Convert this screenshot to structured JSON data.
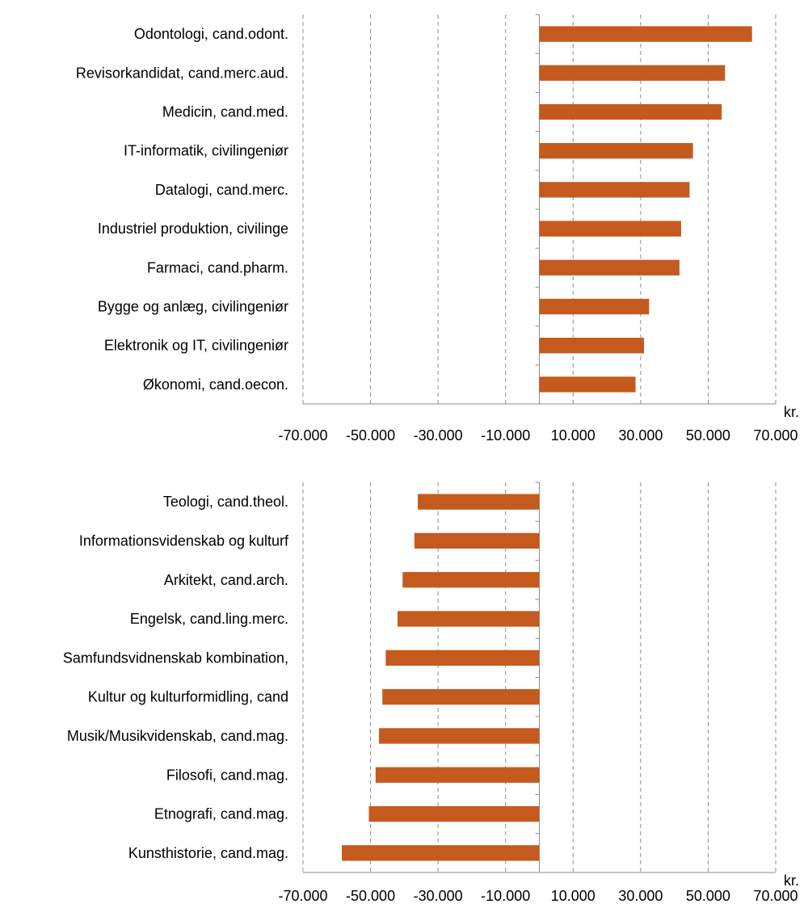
{
  "chart_data": [
    {
      "type": "bar",
      "orientation": "horizontal",
      "categories": [
        "Odontologi, cand.odont.",
        "Revisorkandidat, cand.merc.aud.",
        "Medicin, cand.med.",
        "IT-informatik, civilingeniør",
        "Datalogi, cand.merc.",
        "Industriel produktion, civilinge",
        "Farmaci, cand.pharm.",
        "Bygge og anlæg, civilingeniør",
        "Elektronik og IT, civilingeniør",
        "Økonomi, cand.oecon."
      ],
      "values": [
        63000,
        55000,
        54000,
        45500,
        44500,
        42000,
        41500,
        32500,
        31000,
        28500
      ],
      "xlim": [
        -70000,
        70000
      ],
      "x_ticks": [
        -70000,
        -50000,
        -30000,
        -10000,
        10000,
        30000,
        50000,
        70000
      ],
      "x_tick_labels": [
        "-70.000",
        "-50.000",
        "-30.000",
        "-10.000",
        "10.000",
        "30.000",
        "50.000",
        "70.000"
      ],
      "unit_label": "kr.",
      "bar_color": "#C55A1E",
      "grid": "vertical dashed"
    },
    {
      "type": "bar",
      "orientation": "horizontal",
      "categories": [
        "Teologi, cand.theol.",
        "Informationsvidenskab og kulturf",
        "Arkitekt, cand.arch.",
        "Engelsk, cand.ling.merc.",
        "Samfundsvidnenskab kombination,",
        "Kultur og kulturformidling, cand",
        "Musik/Musikvidenskab, cand.mag.",
        "Filosofi, cand.mag.",
        "Etnografi, cand.mag.",
        "Kunsthistorie, cand.mag."
      ],
      "values": [
        -36000,
        -37000,
        -40500,
        -42000,
        -45500,
        -46500,
        -47500,
        -48500,
        -50500,
        -58500
      ],
      "xlim": [
        -70000,
        70000
      ],
      "x_ticks": [
        -70000,
        -50000,
        -30000,
        -10000,
        10000,
        30000,
        50000,
        70000
      ],
      "x_tick_labels": [
        "-70.000",
        "-50.000",
        "-30.000",
        "-10.000",
        "10.000",
        "30.000",
        "50.000",
        "70.000"
      ],
      "unit_label": "kr.",
      "bar_color": "#C55A1E",
      "grid": "vertical dashed"
    }
  ]
}
